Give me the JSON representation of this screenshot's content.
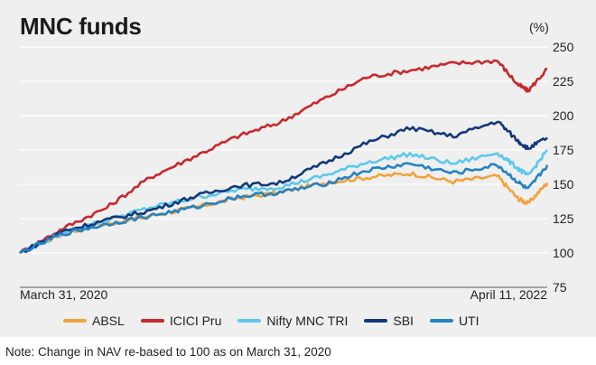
{
  "chart_data": {
    "type": "line",
    "title": "MNC funds",
    "ylabel": "(%)",
    "xlabel": "",
    "x_start_label": "March 31, 2020",
    "x_end_label": "April 11, 2022",
    "ylim": [
      75,
      250
    ],
    "yticks": [
      75,
      100,
      125,
      150,
      175,
      200,
      225,
      250
    ],
    "x": [
      "2020-03-31",
      "2020-05-31",
      "2020-07-31",
      "2020-09-30",
      "2020-11-30",
      "2021-01-31",
      "2021-03-31",
      "2021-05-31",
      "2021-07-31",
      "2021-09-30",
      "2021-11-30",
      "2022-01-31",
      "2022-02-28",
      "2022-03-15",
      "2022-04-11"
    ],
    "series": [
      {
        "name": "ABSL",
        "color": "#f2a23b",
        "values": [
          100,
          114,
          121,
          127,
          133,
          140,
          144,
          151,
          155,
          158,
          152,
          156,
          140,
          136,
          151
        ]
      },
      {
        "name": "ICICI Pru",
        "color": "#c8282d",
        "values": [
          100,
          118,
          133,
          155,
          170,
          185,
          195,
          212,
          228,
          233,
          238,
          240,
          223,
          218,
          234
        ]
      },
      {
        "name": "Nifty MNC TRI",
        "color": "#5bc8ee",
        "values": [
          100,
          115,
          124,
          133,
          140,
          146,
          148,
          156,
          166,
          172,
          165,
          173,
          162,
          156,
          175
        ]
      },
      {
        "name": "SBI",
        "color": "#12397a",
        "values": [
          100,
          116,
          124,
          131,
          141,
          149,
          151,
          165,
          180,
          191,
          185,
          196,
          182,
          176,
          184
        ]
      },
      {
        "name": "UTI",
        "color": "#2382c5",
        "values": [
          100,
          114,
          121,
          127,
          133,
          141,
          144,
          150,
          160,
          165,
          158,
          164,
          152,
          146,
          164
        ]
      }
    ]
  },
  "note": "Note: Change in NAV re-based to 100 as on March 31, 2020"
}
